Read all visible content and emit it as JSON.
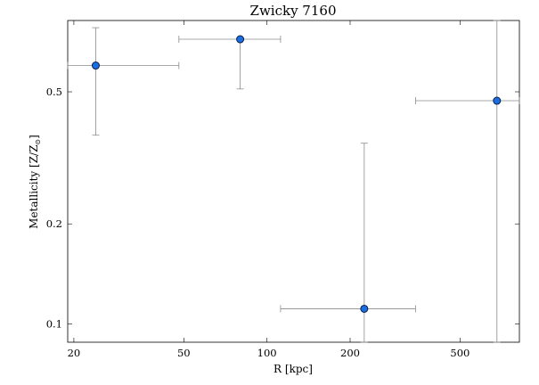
{
  "chart_data": {
    "type": "scatter",
    "title": "Zwicky 7160",
    "xlabel": "R [kpc]",
    "ylabel_main": "Metallicity [Z/Z",
    "ylabel_sub": "⊙",
    "ylabel_end": "]",
    "x_scale": "log",
    "y_scale": "log",
    "xlim": [
      19,
      820
    ],
    "ylim": [
      0.088,
      0.82
    ],
    "x_ticks": [
      20,
      50,
      100,
      200,
      500
    ],
    "x_tick_labels": [
      "20",
      "50",
      "100",
      "200",
      "500"
    ],
    "y_ticks": [
      0.1,
      0.2,
      0.5
    ],
    "y_tick_labels": [
      "0.1",
      "0.2",
      "0.5"
    ],
    "grid": false,
    "points": [
      {
        "x": 24,
        "y": 0.6,
        "xerr": [
          19,
          48
        ],
        "yerr": [
          0.37,
          0.78
        ]
      },
      {
        "x": 80,
        "y": 0.72,
        "xerr": [
          48,
          112
        ],
        "yerr": [
          0.51,
          0.72
        ]
      },
      {
        "x": 225,
        "y": 0.111,
        "xerr": [
          112,
          345
        ],
        "yerr": [
          0.088,
          0.35
        ]
      },
      {
        "x": 680,
        "y": 0.47,
        "xerr": [
          345,
          820
        ],
        "yerr": [
          0.088,
          0.82
        ]
      }
    ],
    "colors": {
      "marker_fill": "#1a6ee0",
      "marker_edge": "#0a1f4a",
      "error_bar": "#8c8c8c",
      "axis": "#000000"
    }
  }
}
